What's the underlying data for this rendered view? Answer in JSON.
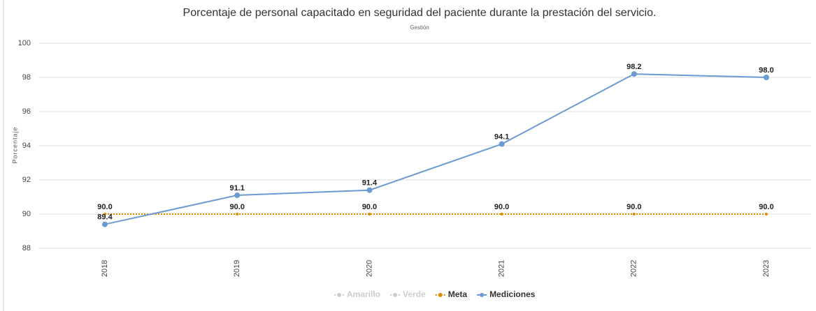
{
  "chart_data": {
    "type": "line",
    "title": "Porcentaje de personal capacitado en seguridad del paciente durante la prestación del servicio.",
    "subtitle": "Gestión",
    "y_label": "Porcentaje",
    "categories": [
      "2018",
      "2019",
      "2020",
      "2021",
      "2022",
      "2023"
    ],
    "ylim": [
      88,
      100
    ],
    "yticks": [
      88,
      90,
      92,
      94,
      96,
      98,
      100
    ],
    "grid": true,
    "legend": "bottom",
    "series": [
      {
        "name": "Amarillo",
        "color": "#cccccc",
        "values": [
          null,
          null,
          null,
          null,
          null,
          null
        ],
        "hidden": true
      },
      {
        "name": "Verde",
        "color": "#cccccc",
        "values": [
          null,
          null,
          null,
          null,
          null,
          null
        ],
        "hidden": true
      },
      {
        "name": "Meta",
        "color": "#e08a00",
        "values": [
          90,
          90,
          90,
          90,
          90,
          90
        ],
        "value_labels": [
          "90.0",
          "90.0",
          "90.0",
          "90.0",
          "90.0",
          "90.0"
        ],
        "dash": true
      },
      {
        "name": "Mediciones",
        "color": "#6b9bd1",
        "values": [
          89.4,
          91.1,
          91.4,
          94.1,
          98.2,
          98.0
        ],
        "value_labels": [
          "89.4",
          "91.1",
          "91.4",
          "94.1",
          "98.2",
          "98.0"
        ]
      }
    ]
  }
}
